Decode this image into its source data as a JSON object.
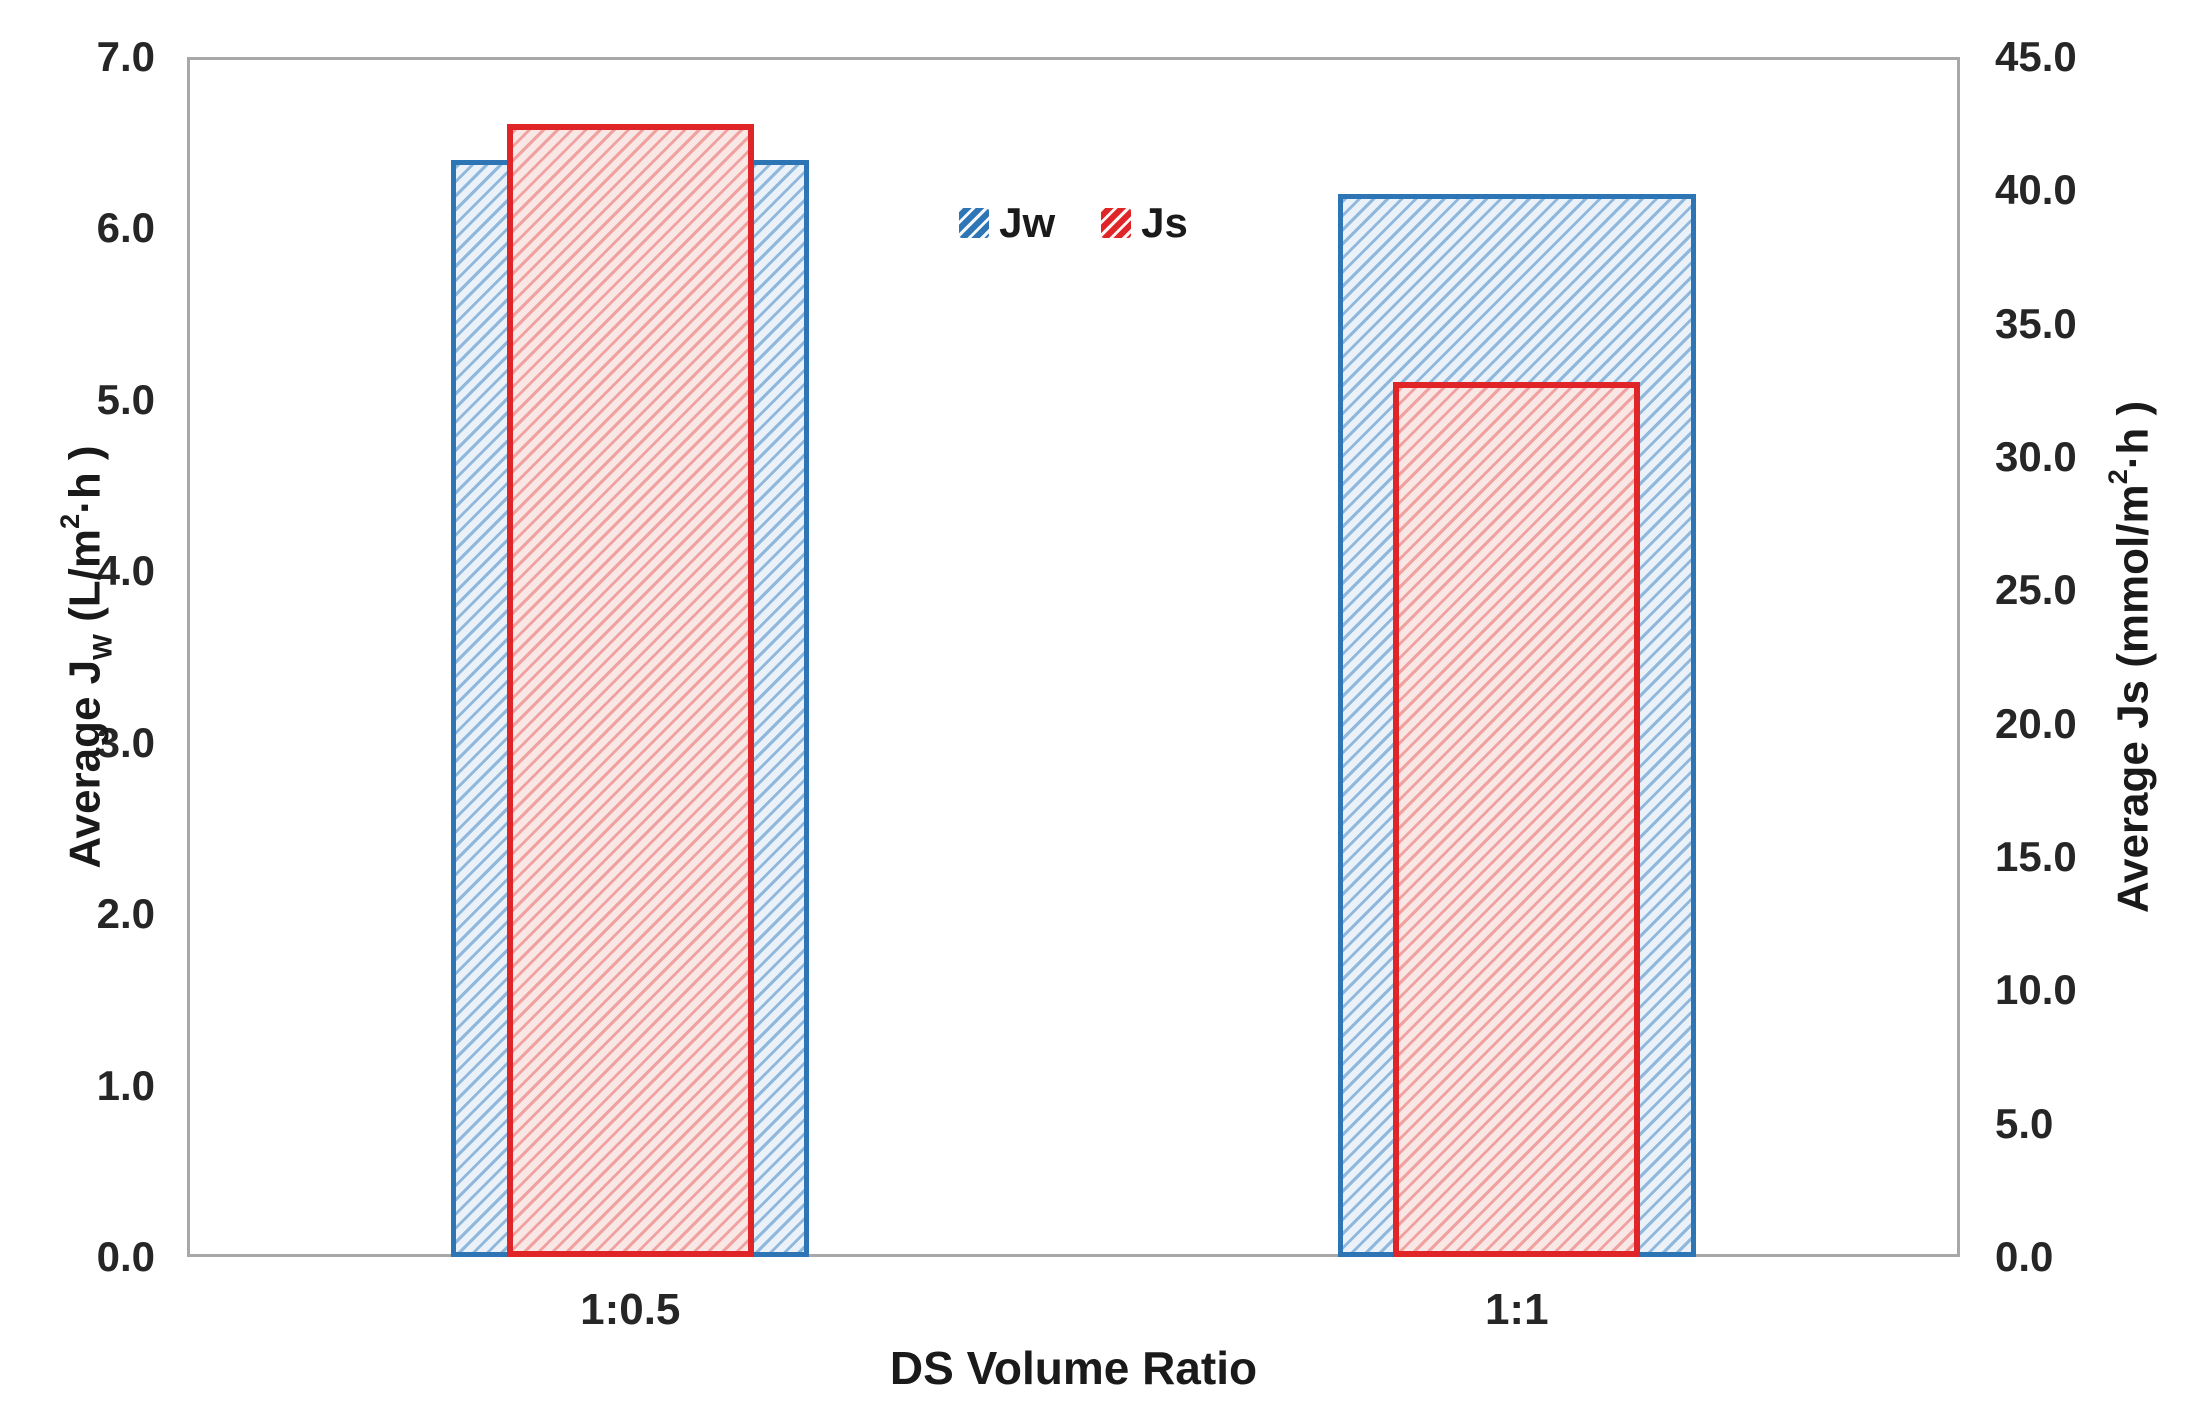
{
  "chart_data": {
    "type": "bar",
    "title": "",
    "xlabel": "DS Volume Ratio",
    "categories": [
      "1:0.5",
      "1:1"
    ],
    "series": [
      {
        "name": "Jw",
        "axis": "left",
        "values": [
          6.4,
          6.2
        ],
        "border_color": "#2E75B6",
        "hatch_line_color": "#8FB8DC",
        "hatch_fill_color": "#EAF1F9"
      },
      {
        "name": "Js",
        "axis": "right",
        "values": [
          42.5,
          32.8
        ],
        "border_color": "#E02528",
        "hatch_line_color": "#EFA2A0",
        "hatch_fill_color": "#F9E7E6"
      }
    ],
    "left_axis": {
      "label": "Average Jw (L/m²·h )",
      "label_parts": [
        {
          "text": "Average J"
        },
        {
          "text": "W",
          "style": "sub"
        },
        {
          "text": " (L/m"
        },
        {
          "text": "2",
          "style": "sup"
        },
        {
          "text": "·h )"
        }
      ],
      "min": 0.0,
      "max": 7.0,
      "step": 1.0,
      "tick_labels": [
        "0.0",
        "1.0",
        "2.0",
        "3.0",
        "4.0",
        "5.0",
        "6.0",
        "7.0"
      ]
    },
    "right_axis": {
      "label": "Average Js (mmol/m²·h )",
      "label_parts": [
        {
          "text": "Average Js (mmol/m"
        },
        {
          "text": "2",
          "style": "sup"
        },
        {
          "text": "·h )"
        }
      ],
      "min": 0.0,
      "max": 45.0,
      "step": 5.0,
      "tick_labels": [
        "0.0",
        "5.0",
        "10.0",
        "15.0",
        "20.0",
        "25.0",
        "30.0",
        "35.0",
        "40.0",
        "45.0"
      ]
    },
    "legend": {
      "position": "top-center-inside",
      "items": [
        "Jw",
        "Js"
      ]
    },
    "grid": false,
    "plot_border_color": "#A8A8A8",
    "background_color": "#FFFFFF"
  }
}
